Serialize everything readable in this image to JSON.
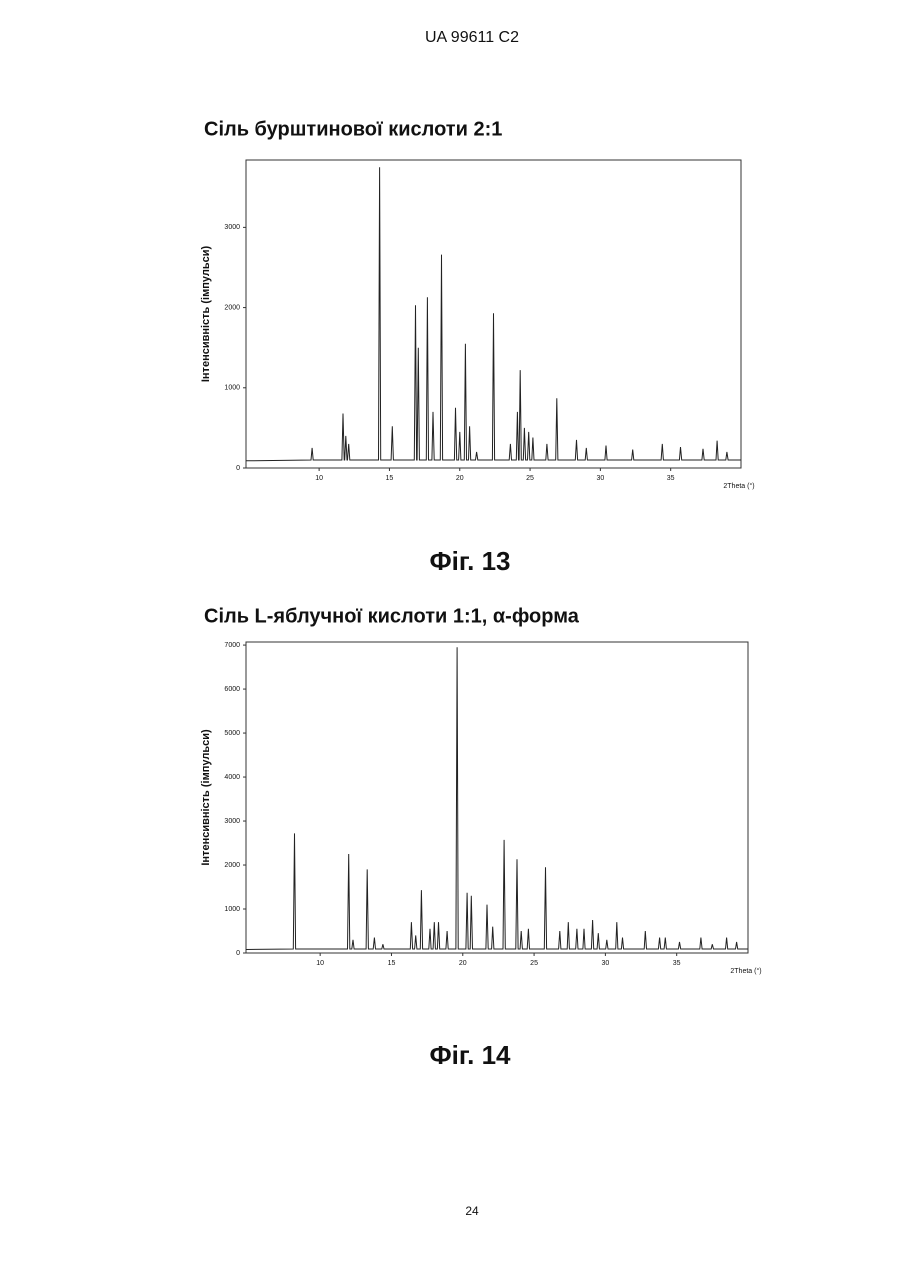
{
  "header": "UA 99611 C2",
  "page_number": "24",
  "chart_data": [
    {
      "type": "line",
      "title": "Сіль бурштинової кислоти 2:1",
      "caption": "Фіг. 13",
      "x_label": "2Theta (°)",
      "y_label": "Інтенсивність (імпульси)",
      "xlim": [
        4.8,
        40
      ],
      "ylim": [
        0,
        3840
      ],
      "xticks": [
        10,
        15,
        20,
        25,
        30,
        35
      ],
      "yticks": [
        0,
        1000,
        2000,
        3000
      ],
      "color": "#222",
      "x": [
        4.8,
        9.42,
        9.5,
        9.58,
        11.62,
        11.7,
        11.78,
        11.82,
        11.9,
        11.98,
        12.02,
        12.1,
        12.18,
        14.22,
        14.3,
        14.38,
        15.12,
        15.2,
        15.28,
        16.77,
        16.85,
        16.93,
        16.97,
        17.05,
        17.13,
        17.62,
        17.7,
        17.78,
        18.02,
        18.1,
        18.18,
        18.62,
        18.7,
        18.78,
        19.62,
        19.7,
        19.78,
        19.92,
        20.0,
        20.08,
        20.32,
        20.4,
        20.48,
        20.62,
        20.7,
        20.78,
        21.12,
        21.2,
        21.28,
        22.32,
        22.4,
        22.48,
        23.52,
        23.6,
        23.68,
        24.02,
        24.1,
        24.18,
        24.22,
        24.3,
        24.38,
        24.52,
        24.6,
        24.68,
        24.82,
        24.9,
        24.98,
        25.12,
        25.2,
        25.28,
        26.12,
        26.2,
        26.28,
        26.82,
        26.9,
        26.98,
        28.22,
        28.3,
        28.38,
        28.92,
        29.0,
        29.08,
        30.32,
        30.4,
        30.48,
        32.22,
        32.3,
        32.38,
        34.32,
        34.4,
        34.48,
        35.62,
        35.7,
        35.78,
        37.22,
        37.3,
        37.38,
        38.22,
        38.3,
        38.38,
        38.92,
        39.0,
        39.08,
        40
      ],
      "values": [
        90,
        100,
        250,
        100,
        100,
        680,
        100,
        100,
        400,
        100,
        100,
        300,
        100,
        100,
        3750,
        100,
        100,
        520,
        100,
        100,
        2030,
        100,
        100,
        1500,
        100,
        100,
        2130,
        100,
        100,
        700,
        100,
        100,
        2660,
        100,
        100,
        750,
        100,
        100,
        450,
        100,
        100,
        1550,
        100,
        100,
        520,
        100,
        100,
        200,
        100,
        100,
        1930,
        100,
        100,
        300,
        100,
        100,
        700,
        100,
        100,
        1220,
        100,
        100,
        500,
        100,
        100,
        450,
        100,
        100,
        380,
        100,
        100,
        300,
        100,
        100,
        870,
        100,
        100,
        350,
        100,
        100,
        250,
        100,
        100,
        280,
        100,
        100,
        230,
        100,
        100,
        300,
        100,
        100,
        260,
        100,
        100,
        240,
        100,
        100,
        340,
        100,
        100,
        200,
        100,
        100
      ]
    },
    {
      "type": "line",
      "title": "Сіль L-яблучної кислоти 1:1, α-форма",
      "caption": "Фіг. 14",
      "x_label": "2Theta (°)",
      "y_label": "Інтенсивність (імпульси)",
      "xlim": [
        4.8,
        40
      ],
      "ylim": [
        0,
        7070
      ],
      "xticks": [
        10,
        15,
        20,
        25,
        30,
        35
      ],
      "yticks": [
        0,
        1000,
        2000,
        3000,
        4000,
        5000,
        6000,
        7000
      ],
      "color": "#222",
      "x": [
        4.8,
        8.12,
        8.2,
        8.28,
        11.92,
        12.0,
        12.08,
        12.22,
        12.3,
        12.38,
        13.22,
        13.3,
        13.38,
        13.72,
        13.8,
        13.88,
        14.32,
        14.4,
        14.48,
        16.32,
        16.4,
        16.48,
        16.62,
        16.7,
        16.78,
        17.02,
        17.1,
        17.18,
        17.62,
        17.7,
        17.78,
        17.92,
        18.0,
        18.08,
        18.22,
        18.3,
        18.38,
        18.82,
        18.9,
        18.98,
        19.52,
        19.6,
        19.68,
        20.22,
        20.3,
        20.38,
        20.52,
        20.6,
        20.68,
        21.62,
        21.7,
        21.78,
        22.02,
        22.1,
        22.18,
        22.82,
        22.9,
        22.98,
        23.72,
        23.8,
        23.88,
        24.02,
        24.1,
        24.18,
        24.52,
        24.6,
        24.68,
        25.72,
        25.8,
        25.88,
        26.72,
        26.8,
        26.88,
        27.32,
        27.4,
        27.48,
        27.92,
        28.0,
        28.08,
        28.42,
        28.5,
        28.58,
        29.02,
        29.1,
        29.18,
        29.42,
        29.5,
        29.58,
        30.02,
        30.1,
        30.18,
        30.72,
        30.8,
        30.88,
        31.12,
        31.2,
        31.28,
        32.72,
        32.8,
        32.88,
        33.72,
        33.8,
        33.88,
        34.12,
        34.2,
        34.28,
        35.12,
        35.2,
        35.28,
        36.62,
        36.7,
        36.78,
        37.42,
        37.5,
        37.58,
        38.42,
        38.5,
        38.58,
        39.12,
        39.2,
        39.28,
        40
      ],
      "values": [
        80,
        90,
        2720,
        90,
        90,
        2250,
        90,
        90,
        300,
        90,
        90,
        1900,
        90,
        90,
        350,
        90,
        90,
        200,
        90,
        90,
        700,
        90,
        90,
        400,
        90,
        90,
        1430,
        90,
        90,
        550,
        90,
        90,
        700,
        90,
        90,
        700,
        90,
        90,
        500,
        90,
        90,
        6950,
        90,
        90,
        1370,
        90,
        90,
        1300,
        90,
        90,
        1100,
        90,
        90,
        600,
        90,
        90,
        2570,
        90,
        90,
        2130,
        90,
        90,
        500,
        90,
        90,
        550,
        90,
        90,
        1950,
        90,
        90,
        500,
        90,
        90,
        700,
        90,
        90,
        550,
        90,
        90,
        550,
        90,
        90,
        750,
        90,
        90,
        450,
        90,
        90,
        300,
        90,
        90,
        700,
        90,
        90,
        350,
        90,
        90,
        500,
        90,
        90,
        350,
        90,
        90,
        350,
        90,
        90,
        250,
        90,
        90,
        350,
        90,
        90,
        200,
        90,
        90,
        350,
        90,
        90,
        250,
        90,
        90
      ]
    }
  ]
}
